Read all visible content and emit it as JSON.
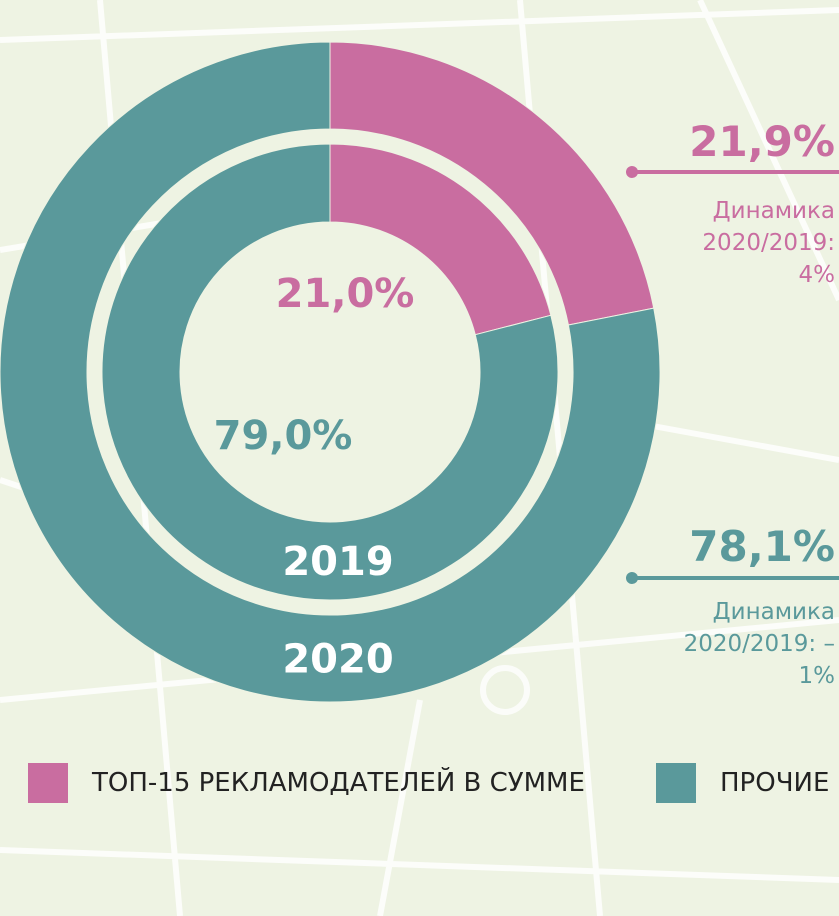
{
  "chart_data": {
    "type": "pie",
    "categories": [
      "ТОП-15 РЕКЛАМОДАТЕЛЕЙ В СУММЕ",
      "ПРОЧИЕ"
    ],
    "colors": [
      "#c96da0",
      "#5a999b"
    ],
    "series": [
      {
        "name": "2019",
        "values": [
          21.0,
          79.0
        ],
        "value_labels": [
          "21,0%",
          "79,0%"
        ]
      },
      {
        "name": "2020",
        "values": [
          21.9,
          78.1
        ],
        "value_labels": [
          "21,9%",
          "78,1%"
        ]
      }
    ],
    "annotations": [
      "Динамика 2020/2019: 4%",
      "Динамика 2020/2019: –1%"
    ],
    "legend": "bottom"
  }
}
